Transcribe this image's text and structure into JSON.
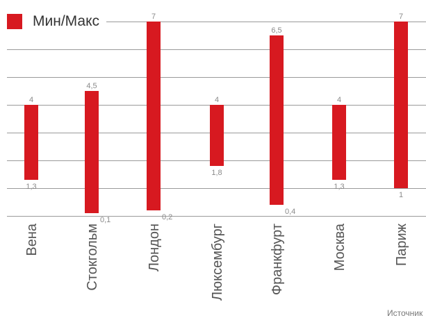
{
  "chart_data": {
    "type": "bar",
    "subtype": "floating-range",
    "categories": [
      "Вена",
      "Стокгольм",
      "Лондон",
      "Люксембург",
      "Франкфурт",
      "Москва",
      "Париж"
    ],
    "series": [
      {
        "name": "Мин/Макс",
        "min": [
          1.3,
          0.1,
          0.2,
          1.8,
          0.4,
          1.3,
          1
        ],
        "max": [
          4,
          4.5,
          7,
          4,
          6.5,
          4,
          7
        ],
        "min_labels": [
          "1,3",
          "0,1",
          "0,2",
          "1,8",
          "0,4",
          "1,3",
          "1"
        ],
        "max_labels": [
          "4",
          "4,5",
          "7",
          "4",
          "6,5",
          "4",
          "7"
        ]
      }
    ],
    "ylim": [
      0,
      7
    ],
    "grid": true,
    "legend_position": "top-left",
    "colors": {
      "bar": "#d71920",
      "grid": "#9a9a9a",
      "label": "#8a8a8a",
      "category": "#555555"
    }
  },
  "legend": {
    "label": "Мин/Макс"
  },
  "source": "Источник"
}
